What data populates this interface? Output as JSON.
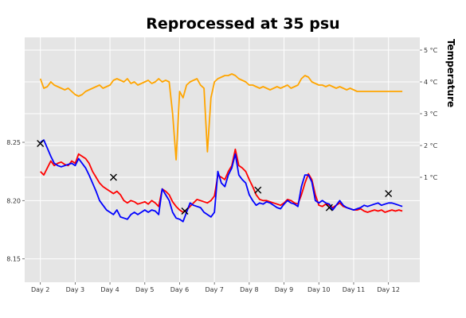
{
  "chart_data": {
    "type": "line",
    "title": "Reprocessed at 35 psu",
    "xlabel": "",
    "ylabel": "",
    "grid": true,
    "x_tick_labels": [
      "Day 2",
      "Day 3",
      "Day 4",
      "Day 5",
      "Day 6",
      "Day 7",
      "Day 8",
      "Day 9",
      "Day 10",
      "Day 11",
      "Day 12"
    ],
    "xlim": [
      1.55,
      12.9
    ],
    "ylim": [
      8.13,
      8.34
    ],
    "y_ticks": [
      8.15,
      8.2,
      8.25
    ],
    "y_tick_labels": [
      "8.15",
      "8.20",
      "8.25"
    ],
    "right_axis": {
      "label": "Temperature",
      "tick_labels": [
        "1 °C",
        "2 °C",
        "3 °C",
        "4 °C",
        "5 °C"
      ],
      "ticks": [
        1,
        2,
        3,
        4,
        5
      ],
      "lim": [
        -2.3,
        5.4
      ]
    },
    "series": [
      {
        "color": "#ff0000",
        "axis": "left",
        "x": [
          2.0,
          2.1,
          2.2,
          2.3,
          2.4,
          2.5,
          2.6,
          2.7,
          2.8,
          2.9,
          3.0,
          3.1,
          3.2,
          3.3,
          3.4,
          3.5,
          3.6,
          3.7,
          3.8,
          3.9,
          4.0,
          4.1,
          4.2,
          4.3,
          4.4,
          4.5,
          4.6,
          4.7,
          4.8,
          4.9,
          5.0,
          5.1,
          5.2,
          5.3,
          5.4,
          5.5,
          5.6,
          5.7,
          5.8,
          5.9,
          6.0,
          6.1,
          6.2,
          6.3,
          6.4,
          6.5,
          6.6,
          6.7,
          6.8,
          6.9,
          7.0,
          7.1,
          7.2,
          7.3,
          7.4,
          7.5,
          7.6,
          7.7,
          7.8,
          7.9,
          8.0,
          8.1,
          8.2,
          8.3,
          8.4,
          8.5,
          8.6,
          8.7,
          8.8,
          8.9,
          9.0,
          9.1,
          9.2,
          9.3,
          9.4,
          9.5,
          9.6,
          9.7,
          9.8,
          9.9,
          10.0,
          10.1,
          10.2,
          10.3,
          10.4,
          10.5,
          10.6,
          10.7,
          10.8,
          10.9,
          11.0,
          11.1,
          11.2,
          11.3,
          11.4,
          11.5,
          11.6,
          11.7,
          11.8,
          11.9,
          12.0,
          12.1,
          12.2,
          12.3,
          12.4
        ],
        "values": [
          8.225,
          8.222,
          8.228,
          8.234,
          8.23,
          8.232,
          8.233,
          8.231,
          8.23,
          8.234,
          8.232,
          8.24,
          8.238,
          8.236,
          8.232,
          8.225,
          8.22,
          8.215,
          8.212,
          8.21,
          8.208,
          8.206,
          8.208,
          8.205,
          8.2,
          8.198,
          8.2,
          8.199,
          8.197,
          8.198,
          8.199,
          8.197,
          8.2,
          8.198,
          8.195,
          8.21,
          8.208,
          8.205,
          8.199,
          8.195,
          8.192,
          8.19,
          8.192,
          8.195,
          8.198,
          8.201,
          8.2,
          8.199,
          8.198,
          8.2,
          8.204,
          8.222,
          8.22,
          8.218,
          8.225,
          8.23,
          8.244,
          8.23,
          8.228,
          8.225,
          8.218,
          8.212,
          8.205,
          8.201,
          8.2,
          8.2,
          8.199,
          8.198,
          8.197,
          8.196,
          8.198,
          8.201,
          8.2,
          8.198,
          8.197,
          8.205,
          8.215,
          8.223,
          8.218,
          8.205,
          8.196,
          8.195,
          8.197,
          8.196,
          8.194,
          8.196,
          8.198,
          8.195,
          8.194,
          8.193,
          8.192,
          8.192,
          8.193,
          8.191,
          8.19,
          8.191,
          8.192,
          8.191,
          8.192,
          8.19,
          8.191,
          8.192,
          8.191,
          8.192,
          8.191
        ]
      },
      {
        "color": "#0000ff",
        "axis": "left",
        "x": [
          2.0,
          2.1,
          2.2,
          2.3,
          2.4,
          2.5,
          2.6,
          2.7,
          2.8,
          2.9,
          3.0,
          3.1,
          3.2,
          3.3,
          3.4,
          3.5,
          3.6,
          3.7,
          3.8,
          3.9,
          4.0,
          4.1,
          4.2,
          4.3,
          4.4,
          4.5,
          4.6,
          4.7,
          4.8,
          4.9,
          5.0,
          5.1,
          5.2,
          5.3,
          5.4,
          5.5,
          5.6,
          5.7,
          5.8,
          5.9,
          6.0,
          6.1,
          6.2,
          6.3,
          6.4,
          6.5,
          6.6,
          6.7,
          6.8,
          6.9,
          7.0,
          7.1,
          7.2,
          7.3,
          7.4,
          7.5,
          7.6,
          7.7,
          7.8,
          7.9,
          8.0,
          8.1,
          8.2,
          8.3,
          8.4,
          8.5,
          8.6,
          8.7,
          8.8,
          8.9,
          9.0,
          9.1,
          9.2,
          9.3,
          9.4,
          9.5,
          9.6,
          9.7,
          9.8,
          9.9,
          10.0,
          10.1,
          10.2,
          10.3,
          10.4,
          10.5,
          10.6,
          10.7,
          10.8,
          10.9,
          11.0,
          11.1,
          11.2,
          11.3,
          11.4,
          11.5,
          11.6,
          11.7,
          11.8,
          11.9,
          12.0,
          12.1,
          12.2,
          12.3,
          12.4
        ],
        "values": [
          8.25,
          8.252,
          8.245,
          8.238,
          8.232,
          8.23,
          8.229,
          8.23,
          8.231,
          8.232,
          8.23,
          8.236,
          8.232,
          8.228,
          8.222,
          8.215,
          8.208,
          8.2,
          8.196,
          8.192,
          8.19,
          8.188,
          8.192,
          8.186,
          8.185,
          8.184,
          8.188,
          8.19,
          8.188,
          8.19,
          8.192,
          8.19,
          8.192,
          8.191,
          8.188,
          8.21,
          8.205,
          8.2,
          8.19,
          8.185,
          8.184,
          8.182,
          8.19,
          8.198,
          8.196,
          8.195,
          8.194,
          8.19,
          8.188,
          8.186,
          8.19,
          8.225,
          8.215,
          8.212,
          8.222,
          8.228,
          8.24,
          8.222,
          8.218,
          8.215,
          8.205,
          8.2,
          8.196,
          8.198,
          8.197,
          8.199,
          8.198,
          8.196,
          8.194,
          8.193,
          8.197,
          8.2,
          8.198,
          8.197,
          8.195,
          8.212,
          8.222,
          8.222,
          8.216,
          8.2,
          8.198,
          8.2,
          8.198,
          8.197,
          8.192,
          8.196,
          8.2,
          8.196,
          8.194,
          8.193,
          8.192,
          8.193,
          8.194,
          8.196,
          8.195,
          8.196,
          8.197,
          8.198,
          8.196,
          8.197,
          8.198,
          8.198,
          8.197,
          8.196,
          8.195
        ]
      },
      {
        "color": "#ffa500",
        "axis": "right",
        "x": [
          2.0,
          2.1,
          2.2,
          2.3,
          2.4,
          2.5,
          2.6,
          2.7,
          2.8,
          2.9,
          3.0,
          3.1,
          3.2,
          3.3,
          3.4,
          3.5,
          3.6,
          3.7,
          3.8,
          3.9,
          4.0,
          4.1,
          4.2,
          4.3,
          4.4,
          4.5,
          4.6,
          4.7,
          4.8,
          4.9,
          5.0,
          5.1,
          5.2,
          5.3,
          5.4,
          5.5,
          5.6,
          5.7,
          5.8,
          5.9,
          6.0,
          6.1,
          6.2,
          6.3,
          6.4,
          6.5,
          6.6,
          6.7,
          6.8,
          6.9,
          7.0,
          7.1,
          7.2,
          7.3,
          7.4,
          7.5,
          7.6,
          7.7,
          7.8,
          7.9,
          8.0,
          8.1,
          8.2,
          8.3,
          8.4,
          8.5,
          8.6,
          8.7,
          8.8,
          8.9,
          9.0,
          9.1,
          9.2,
          9.3,
          9.4,
          9.5,
          9.6,
          9.7,
          9.8,
          9.9,
          10.0,
          10.1,
          10.2,
          10.3,
          10.4,
          10.5,
          10.6,
          10.7,
          10.8,
          10.9,
          11.0,
          11.1,
          11.2,
          11.3,
          11.4,
          11.5,
          11.6,
          11.7,
          11.8,
          11.9,
          12.0,
          12.1,
          12.2,
          12.3,
          12.4
        ],
        "values": [
          4.1,
          3.8,
          3.85,
          4.0,
          3.9,
          3.85,
          3.8,
          3.75,
          3.8,
          3.7,
          3.6,
          3.55,
          3.6,
          3.7,
          3.75,
          3.8,
          3.85,
          3.9,
          3.8,
          3.85,
          3.9,
          4.05,
          4.1,
          4.05,
          4.0,
          4.1,
          3.95,
          4.0,
          3.9,
          3.95,
          4.0,
          4.05,
          3.95,
          4.0,
          4.1,
          4.0,
          4.05,
          4.0,
          3.0,
          1.55,
          3.7,
          3.5,
          3.9,
          4.0,
          4.05,
          4.1,
          3.9,
          3.8,
          1.8,
          3.5,
          4.0,
          4.1,
          4.15,
          4.2,
          4.2,
          4.25,
          4.2,
          4.1,
          4.05,
          4.0,
          3.9,
          3.9,
          3.85,
          3.8,
          3.85,
          3.8,
          3.75,
          3.8,
          3.85,
          3.8,
          3.85,
          3.9,
          3.8,
          3.85,
          3.9,
          4.1,
          4.2,
          4.15,
          4.0,
          3.95,
          3.9,
          3.9,
          3.85,
          3.9,
          3.85,
          3.8,
          3.85,
          3.8,
          3.75,
          3.8,
          3.75,
          3.7,
          3.7,
          3.7,
          3.7,
          3.7,
          3.7,
          3.7,
          3.7,
          3.7,
          3.7,
          3.7,
          3.7,
          3.7,
          3.7
        ]
      }
    ],
    "markers": {
      "symbol": "x",
      "x": [
        2.0,
        4.1,
        6.15,
        8.25,
        10.3,
        12.0
      ],
      "y": [
        8.249,
        8.22,
        8.191,
        8.209,
        8.194,
        8.206
      ]
    }
  }
}
